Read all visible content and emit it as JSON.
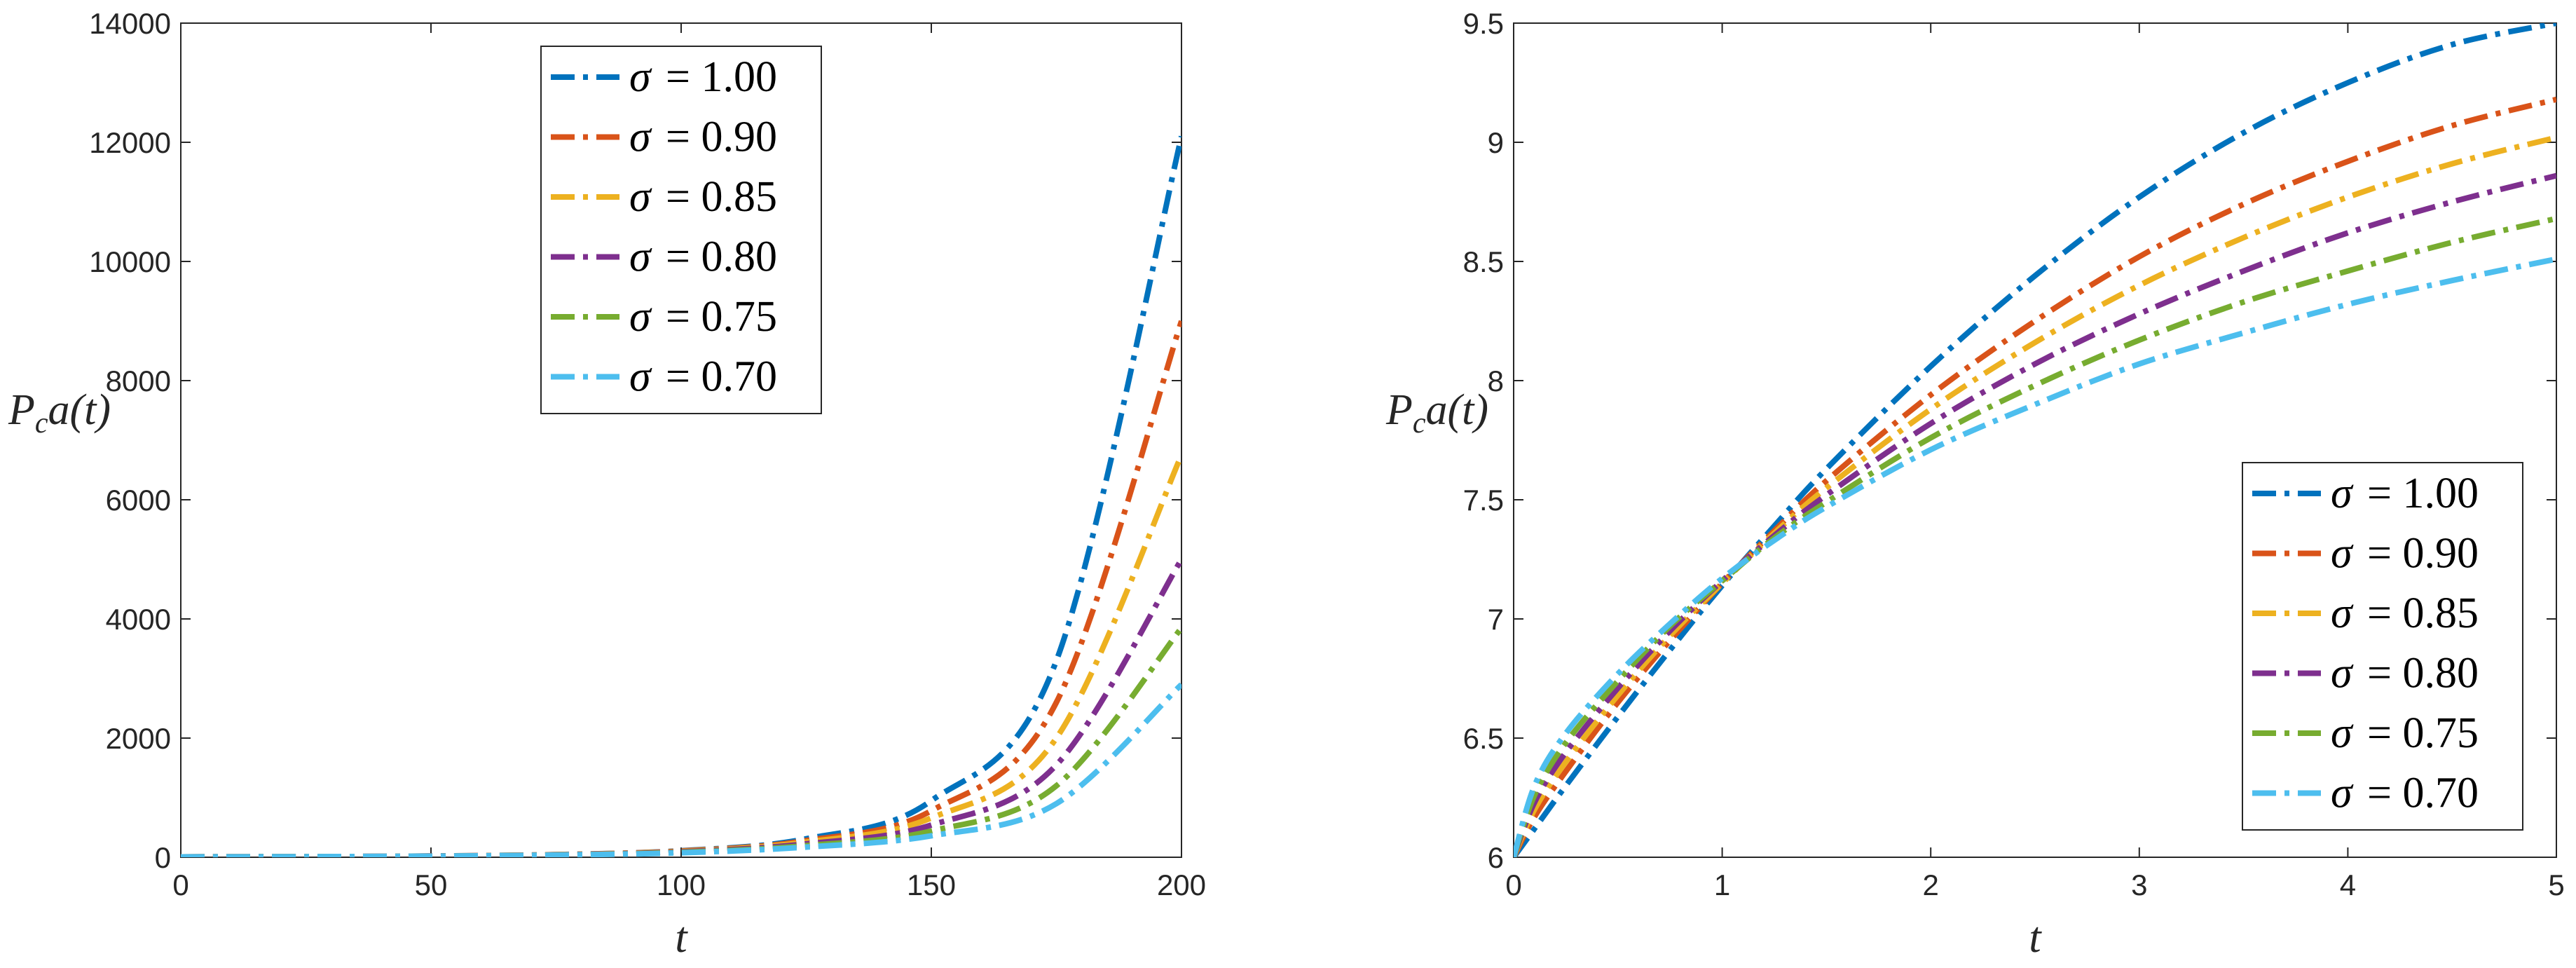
{
  "chart_data": [
    {
      "type": "line",
      "xlabel": "t",
      "ylabel": "P_c a(t)",
      "ylabel_main": "P",
      "ylabel_sub": "c",
      "ylabel_rest": "a(t)",
      "xlim": [
        0,
        200
      ],
      "ylim": [
        0,
        14000
      ],
      "xticks": [
        0,
        50,
        100,
        150,
        200
      ],
      "yticks": [
        0,
        2000,
        4000,
        6000,
        8000,
        10000,
        12000,
        14000
      ],
      "xticklabels": [
        "0",
        "50",
        "100",
        "150",
        "200"
      ],
      "yticklabels": [
        "0",
        "2000",
        "4000",
        "6000",
        "8000",
        "10000",
        "12000",
        "14000"
      ],
      "legend_position": "top-center",
      "series": [
        {
          "name": "σ = 1.00",
          "sigma_text": "σ",
          "value_text": "= 1.00",
          "color": "#0072BD",
          "x": [
            0,
            25,
            50,
            75,
            100,
            125,
            150,
            175,
            200
          ],
          "values": [
            6,
            10,
            20,
            45,
            110,
            310,
            950,
            3300,
            12100
          ]
        },
        {
          "name": "σ = 0.90",
          "sigma_text": "σ",
          "value_text": "= 0.90",
          "color": "#D95319",
          "x": [
            0,
            25,
            50,
            75,
            100,
            125,
            150,
            175,
            200
          ],
          "values": [
            6,
            10,
            20,
            44,
            105,
            280,
            780,
            2600,
            9000
          ]
        },
        {
          "name": "σ = 0.85",
          "sigma_text": "σ",
          "value_text": "= 0.85",
          "color": "#EDB120",
          "x": [
            0,
            25,
            50,
            75,
            100,
            125,
            150,
            175,
            200
          ],
          "values": [
            6,
            10,
            19,
            42,
            98,
            255,
            660,
            2000,
            6750
          ]
        },
        {
          "name": "σ = 0.80",
          "sigma_text": "σ",
          "value_text": "= 0.80",
          "color": "#7E2F8E",
          "x": [
            0,
            25,
            50,
            75,
            100,
            125,
            150,
            175,
            200
          ],
          "values": [
            6,
            10,
            19,
            40,
            90,
            225,
            540,
            1550,
            5000
          ]
        },
        {
          "name": "σ = 0.75",
          "sigma_text": "σ",
          "value_text": "= 0.75",
          "color": "#77AC30",
          "x": [
            0,
            25,
            50,
            75,
            100,
            125,
            150,
            175,
            200
          ],
          "values": [
            6,
            10,
            18,
            38,
            82,
            195,
            440,
            1200,
            3850
          ]
        },
        {
          "name": "σ = 0.70",
          "sigma_text": "σ",
          "value_text": "= 0.70",
          "color": "#4DBEEE",
          "x": [
            0,
            25,
            50,
            75,
            100,
            125,
            150,
            175,
            200
          ],
          "values": [
            6,
            10,
            18,
            36,
            75,
            170,
            360,
            900,
            2900
          ]
        }
      ]
    },
    {
      "type": "line",
      "xlabel": "t",
      "ylabel": "P_c a(t)",
      "ylabel_main": "P",
      "ylabel_sub": "c",
      "ylabel_rest": "a(t)",
      "xlim": [
        0,
        5
      ],
      "ylim": [
        6,
        9.5
      ],
      "xticks": [
        0,
        1,
        2,
        3,
        4,
        5
      ],
      "yticks": [
        6,
        6.5,
        7,
        7.5,
        8,
        8.5,
        9,
        9.5
      ],
      "xticklabels": [
        "0",
        "1",
        "2",
        "3",
        "4",
        "5"
      ],
      "yticklabels": [
        "6",
        "6.5",
        "7",
        "7.5",
        "8",
        "8.5",
        "9",
        "9.5"
      ],
      "legend_position": "bottom-right",
      "series": [
        {
          "name": "σ = 1.00",
          "sigma_text": "σ",
          "value_text": "= 1.00",
          "color": "#0072BD",
          "x": [
            0,
            0.1,
            0.25,
            0.5,
            0.75,
            1,
            1.25,
            1.5,
            2,
            2.5,
            3,
            3.5,
            4,
            4.5,
            5
          ],
          "values": [
            6.0,
            6.12,
            6.3,
            6.59,
            6.87,
            7.14,
            7.39,
            7.63,
            8.06,
            8.44,
            8.77,
            9.04,
            9.25,
            9.41,
            9.5
          ]
        },
        {
          "name": "σ = 0.90",
          "sigma_text": "σ",
          "value_text": "= 0.90",
          "color": "#D95319",
          "x": [
            0,
            0.1,
            0.25,
            0.5,
            0.75,
            1,
            1.25,
            1.5,
            2,
            2.5,
            3,
            3.5,
            4,
            4.5,
            5
          ],
          "values": [
            6.0,
            6.17,
            6.36,
            6.65,
            6.91,
            7.15,
            7.37,
            7.58,
            7.94,
            8.25,
            8.52,
            8.74,
            8.92,
            9.07,
            9.18
          ]
        },
        {
          "name": "σ = 0.85",
          "sigma_text": "σ",
          "value_text": "= 0.85",
          "color": "#EDB120",
          "x": [
            0,
            0.1,
            0.25,
            0.5,
            0.75,
            1,
            1.25,
            1.5,
            2,
            2.5,
            3,
            3.5,
            4,
            4.5,
            5
          ],
          "values": [
            6.0,
            6.2,
            6.4,
            6.68,
            6.93,
            7.15,
            7.36,
            7.55,
            7.88,
            8.16,
            8.4,
            8.6,
            8.77,
            8.91,
            9.02
          ]
        },
        {
          "name": "σ = 0.80",
          "sigma_text": "σ",
          "value_text": "= 0.80",
          "color": "#7E2F8E",
          "x": [
            0,
            0.1,
            0.25,
            0.5,
            0.75,
            1,
            1.25,
            1.5,
            2,
            2.5,
            3,
            3.5,
            4,
            4.5,
            5
          ],
          "values": [
            6.0,
            6.23,
            6.44,
            6.71,
            6.95,
            7.16,
            7.35,
            7.52,
            7.82,
            8.07,
            8.28,
            8.46,
            8.62,
            8.75,
            8.86
          ]
        },
        {
          "name": "σ = 0.75",
          "sigma_text": "σ",
          "value_text": "= 0.75",
          "color": "#77AC30",
          "x": [
            0,
            0.1,
            0.25,
            0.5,
            0.75,
            1,
            1.25,
            1.5,
            2,
            2.5,
            3,
            3.5,
            4,
            4.5,
            5
          ],
          "values": [
            6.0,
            6.26,
            6.48,
            6.74,
            6.97,
            7.16,
            7.34,
            7.49,
            7.76,
            7.98,
            8.17,
            8.33,
            8.46,
            8.58,
            8.68
          ]
        },
        {
          "name": "σ = 0.70",
          "sigma_text": "σ",
          "value_text": "= 0.70",
          "color": "#4DBEEE",
          "x": [
            0,
            0.1,
            0.25,
            0.5,
            0.75,
            1,
            1.25,
            1.5,
            2,
            2.5,
            3,
            3.5,
            4,
            4.5,
            5
          ],
          "values": [
            6.0,
            6.3,
            6.52,
            6.77,
            6.98,
            7.17,
            7.33,
            7.47,
            7.71,
            7.9,
            8.07,
            8.2,
            8.32,
            8.42,
            8.51
          ]
        }
      ]
    }
  ]
}
